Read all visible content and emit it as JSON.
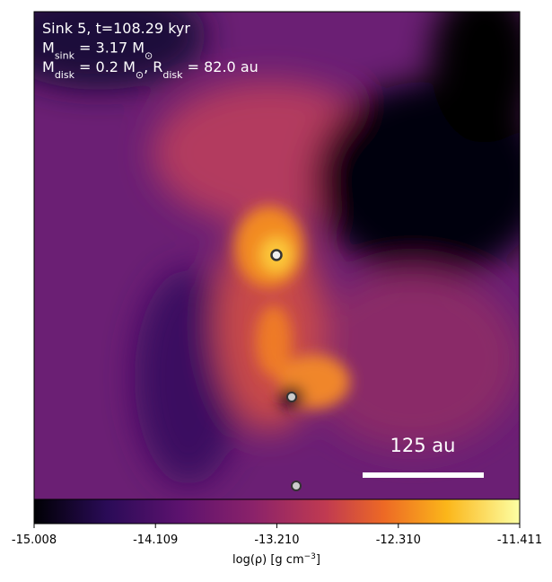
{
  "figure": {
    "annotation_lines": [
      [
        "Sink 5, t=108.29 kyr"
      ],
      [
        "M",
        "sink",
        " = 3.17 M",
        "⊙"
      ],
      [
        "M",
        "disk",
        " = 0.2 M",
        "⊙",
        ", R",
        "disk",
        " = 82.0 au"
      ]
    ],
    "scale_bar_label": "125 au",
    "colorbar": {
      "clim": [
        -15.008,
        -11.411
      ],
      "ticks": [
        -15.008,
        -14.109,
        -13.21,
        -12.31,
        -11.411
      ],
      "tick_labels": [
        "-15.008",
        "-14.109",
        "-13.210",
        "-12.310",
        "-11.411"
      ],
      "label": [
        "log(ρ) [g cm",
        "−3",
        "]"
      ]
    }
  }
}
